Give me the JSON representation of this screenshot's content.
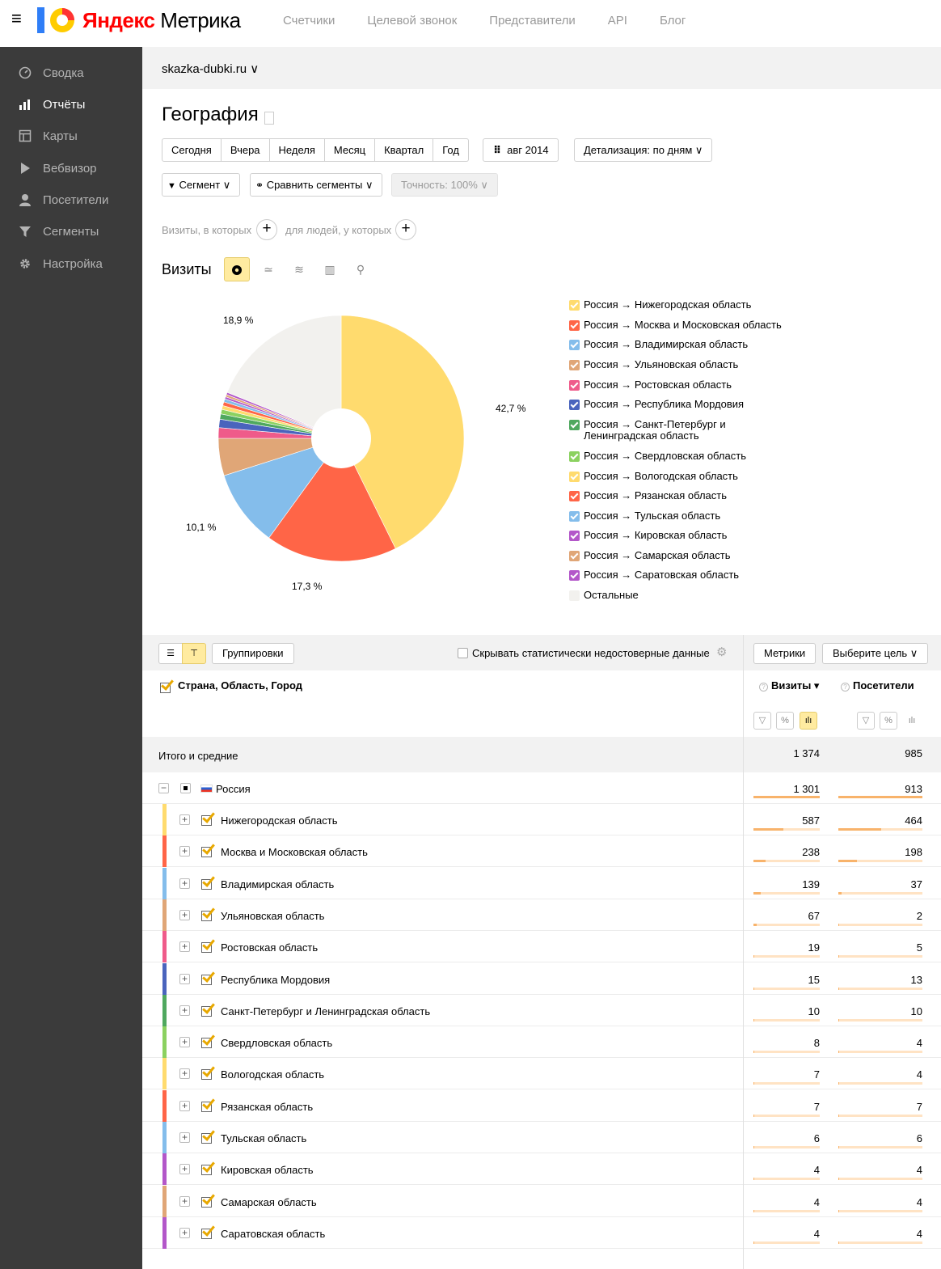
{
  "header": {
    "logo_brand": "Яндекс",
    "logo_product": "Метрика",
    "nav": [
      "Счетчики",
      "Целевой звонок",
      "Представители",
      "API",
      "Блог"
    ]
  },
  "sidebar": {
    "items": [
      {
        "label": "Сводка",
        "icon": "gauge-icon",
        "active": false
      },
      {
        "label": "Отчёты",
        "icon": "bar-chart-icon",
        "active": true
      },
      {
        "label": "Карты",
        "icon": "map-icon",
        "active": false
      },
      {
        "label": "Вебвизор",
        "icon": "play-icon",
        "active": false
      },
      {
        "label": "Посетители",
        "icon": "user-icon",
        "active": false
      },
      {
        "label": "Сегменты",
        "icon": "funnel-icon",
        "active": false
      },
      {
        "label": "Настройка",
        "icon": "gear-icon",
        "active": false
      }
    ]
  },
  "site": {
    "name": "skazka-dubki.ru ∨"
  },
  "report": {
    "title": "География",
    "periods": [
      "Сегодня",
      "Вчера",
      "Неделя",
      "Месяц",
      "Квартал",
      "Год"
    ],
    "date_range": "авг 2014",
    "detail": "Детализация: по дням ∨",
    "segment": "Сегмент ∨",
    "compare": "Сравнить сегменты ∨",
    "accuracy": "Точность: 100% ∨",
    "filter_visits": "Визиты, в которых",
    "filter_people": "для людей, у которых",
    "viz_label": "Визиты"
  },
  "chart_data": {
    "type": "pie",
    "slices": [
      {
        "name": "Россия → Нижегородская область",
        "value": 42.7,
        "color": "#ffdb6e"
      },
      {
        "name": "Россия → Москва и Московская область",
        "value": 17.3,
        "color": "#ff6547"
      },
      {
        "name": "Россия → Владимирская область",
        "value": 10.1,
        "color": "#84bdeb"
      },
      {
        "name": "Россия → Ульяновская область",
        "value": 4.9,
        "color": "#e0a677"
      },
      {
        "name": "Россия → Ростовская область",
        "value": 1.4,
        "color": "#ef5b8a"
      },
      {
        "name": "Россия → Республика Мордовия",
        "value": 1.1,
        "color": "#4a64bd"
      },
      {
        "name": "Россия → Санкт-Петербург и Ленинградская область",
        "value": 0.7,
        "color": "#4fa85f"
      },
      {
        "name": "Россия → Свердловская область",
        "value": 0.6,
        "color": "#8bd160"
      },
      {
        "name": "Россия → Вологодская область",
        "value": 0.5,
        "color": "#ffdb6e"
      },
      {
        "name": "Россия → Рязанская область",
        "value": 0.5,
        "color": "#ff6547"
      },
      {
        "name": "Россия → Тульская область",
        "value": 0.4,
        "color": "#84bdeb"
      },
      {
        "name": "Россия → Кировская область",
        "value": 0.3,
        "color": "#b357c9"
      },
      {
        "name": "Россия → Самарская область",
        "value": 0.3,
        "color": "#e0a677"
      },
      {
        "name": "Россия → Саратовская область",
        "value": 0.3,
        "color": "#b357c9"
      },
      {
        "name": "Остальные",
        "value": 18.9,
        "color": "#f2f1ee"
      }
    ],
    "slice_labels": [
      "42,7 %",
      "17,3 %",
      "10,1 %",
      "18,9 %"
    ]
  },
  "legend": [
    {
      "label": "Россия → Нижегородская область",
      "color": "#ffdb6e"
    },
    {
      "label": "Россия → Москва и Московская область",
      "color": "#ff6547"
    },
    {
      "label": "Россия → Владимирская область",
      "color": "#84bdeb"
    },
    {
      "label": "Россия → Ульяновская область",
      "color": "#e0a677"
    },
    {
      "label": "Россия → Ростовская область",
      "color": "#ef5b8a"
    },
    {
      "label": "Россия → Республика Мордовия",
      "color": "#4a64bd"
    },
    {
      "label": "Россия → Санкт-Петербург и\nЛенинградская область",
      "color": "#4fa85f"
    },
    {
      "label": "Россия → Свердловская область",
      "color": "#8bd160"
    },
    {
      "label": "Россия → Вологодская область",
      "color": "#ffdb6e"
    },
    {
      "label": "Россия → Рязанская область",
      "color": "#ff6547"
    },
    {
      "label": "Россия → Тульская область",
      "color": "#84bdeb"
    },
    {
      "label": "Россия → Кировская область",
      "color": "#b357c9"
    },
    {
      "label": "Россия → Самарская область",
      "color": "#e0a677"
    },
    {
      "label": "Россия → Саратовская область",
      "color": "#b357c9"
    },
    {
      "label": "Остальные",
      "color": "#f2f1ee"
    }
  ],
  "table": {
    "groupings_btn": "Группировки",
    "hide_unreliable": "Скрывать статистически недостоверные данные",
    "metrics_btn": "Метрики",
    "goal_btn": "Выберите цель ∨",
    "dimension_header": "Страна, Область, Город",
    "col_visits": "Визиты ▾",
    "col_visitors": "Посетители",
    "totals_label": "Итого и средние",
    "totals_visits": "1 374",
    "totals_visitors": "985",
    "country": {
      "label": "Россия",
      "visits": "1 301",
      "visitors": "913"
    },
    "rows": [
      {
        "label": "Нижегородская область",
        "visits": "587",
        "visitors": "464",
        "visits_share": 0.451,
        "visitors_share": 0.508,
        "color": "#ffdb6e"
      },
      {
        "label": "Москва и Московская область",
        "visits": "238",
        "visitors": "198",
        "visits_share": 0.183,
        "visitors_share": 0.217,
        "color": "#ff6547"
      },
      {
        "label": "Владимирская область",
        "visits": "139",
        "visitors": "37",
        "visits_share": 0.107,
        "visitors_share": 0.041,
        "color": "#84bdeb"
      },
      {
        "label": "Ульяновская область",
        "visits": "67",
        "visitors": "2",
        "visits_share": 0.051,
        "visitors_share": 0.002,
        "color": "#e0a677"
      },
      {
        "label": "Ростовская область",
        "visits": "19",
        "visitors": "5",
        "visits_share": 0.015,
        "visitors_share": 0.005,
        "color": "#ef5b8a"
      },
      {
        "label": "Республика Мордовия",
        "visits": "15",
        "visitors": "13",
        "visits_share": 0.012,
        "visitors_share": 0.014,
        "color": "#4a64bd"
      },
      {
        "label": "Санкт-Петербург и Ленинградская область",
        "visits": "10",
        "visitors": "10",
        "visits_share": 0.008,
        "visitors_share": 0.011,
        "color": "#4fa85f"
      },
      {
        "label": "Свердловская область",
        "visits": "8",
        "visitors": "4",
        "visits_share": 0.006,
        "visitors_share": 0.004,
        "color": "#8bd160"
      },
      {
        "label": "Вологодская область",
        "visits": "7",
        "visitors": "4",
        "visits_share": 0.005,
        "visitors_share": 0.004,
        "color": "#ffdb6e"
      },
      {
        "label": "Рязанская область",
        "visits": "7",
        "visitors": "7",
        "visits_share": 0.005,
        "visitors_share": 0.008,
        "color": "#ff6547"
      },
      {
        "label": "Тульская область",
        "visits": "6",
        "visitors": "6",
        "visits_share": 0.005,
        "visitors_share": 0.007,
        "color": "#84bdeb"
      },
      {
        "label": "Кировская область",
        "visits": "4",
        "visitors": "4",
        "visits_share": 0.003,
        "visitors_share": 0.004,
        "color": "#b357c9"
      },
      {
        "label": "Самарская область",
        "visits": "4",
        "visitors": "4",
        "visits_share": 0.003,
        "visitors_share": 0.004,
        "color": "#e0a677"
      },
      {
        "label": "Саратовская область",
        "visits": "4",
        "visitors": "4",
        "visits_share": 0.003,
        "visitors_share": 0.004,
        "color": "#b357c9"
      }
    ]
  }
}
